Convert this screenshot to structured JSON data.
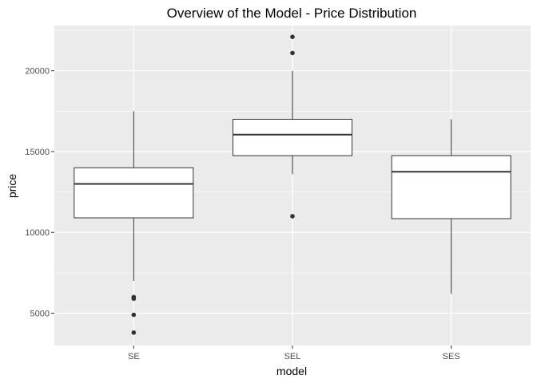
{
  "chart_data": {
    "type": "boxplot",
    "title": "Overview of the Model - Price Distribution",
    "xlabel": "model",
    "ylabel": "price",
    "ylim": [
      3000,
      22800
    ],
    "y_ticks": [
      5000,
      10000,
      15000,
      20000
    ],
    "grid": true,
    "categories": [
      "SE",
      "SEL",
      "SES"
    ],
    "boxes": [
      {
        "category": "SE",
        "whisker_low": 7000,
        "q1": 10900,
        "median": 13000,
        "q3": 14000,
        "whisker_high": 17500,
        "outliers": [
          6000,
          5900,
          4900,
          3800
        ]
      },
      {
        "category": "SEL",
        "whisker_low": 13600,
        "q1": 14750,
        "median": 16050,
        "q3": 17000,
        "whisker_high": 20000,
        "outliers": [
          22100,
          21100,
          11000
        ]
      },
      {
        "category": "SES",
        "whisker_low": 6200,
        "q1": 10850,
        "median": 13750,
        "q3": 14750,
        "whisker_high": 17000,
        "outliers": []
      }
    ],
    "colors": {
      "panel": "#ebebeb",
      "grid": "#ffffff",
      "box_fill": "#ffffff",
      "box_line": "#333333",
      "outlier": "#333333"
    }
  }
}
